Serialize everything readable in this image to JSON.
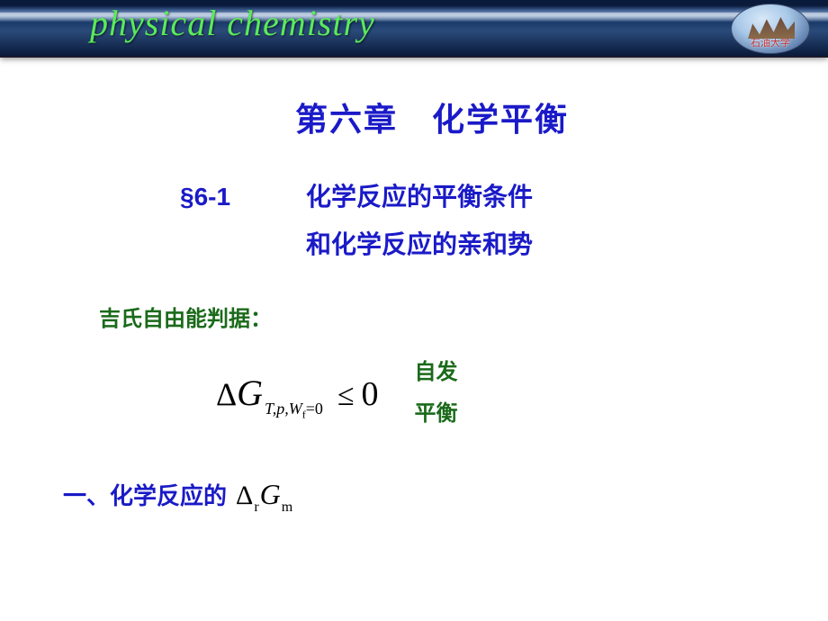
{
  "header": {
    "title_text": "physical chemistry",
    "logo_text": "石油大学",
    "bg_gradient": [
      "#0a1a3a",
      "#3a5a8c",
      "#a0b8d8",
      "#1a3a6a",
      "#0a1a3a"
    ],
    "title_color": "#5aea5a"
  },
  "colors": {
    "heading_blue": "#1a1ac8",
    "accent_green": "#1a6a1a",
    "formula_black": "#000000",
    "background": "#ffffff"
  },
  "typography": {
    "chapter_title_fontsize": 36,
    "section_fontsize": 28,
    "label_fontsize": 24,
    "formula_fontsize": 38,
    "topic_fontsize": 26,
    "heading_family": "SimHei",
    "formula_family": "Times New Roman"
  },
  "chapter": {
    "title": "第六章　化学平衡"
  },
  "section": {
    "number": "§6-1",
    "line1": "化学反应的平衡条件",
    "line2": "和化学反应的亲和势"
  },
  "criterion": {
    "label": "吉氏自由能判据：",
    "formula": {
      "delta": "Δ",
      "var": "G",
      "subscript": "T,p,W",
      "sub_f": "f",
      "sub_eq": "=0",
      "relation": "≤",
      "rhs": "0"
    },
    "notes": {
      "spontaneous": "自发",
      "equilibrium": "平衡"
    }
  },
  "topic1": {
    "number": "一、",
    "label": "化学反应的",
    "formula": {
      "delta": "Δ",
      "sub_r": "r",
      "var": "G",
      "sub_m": "m"
    }
  }
}
